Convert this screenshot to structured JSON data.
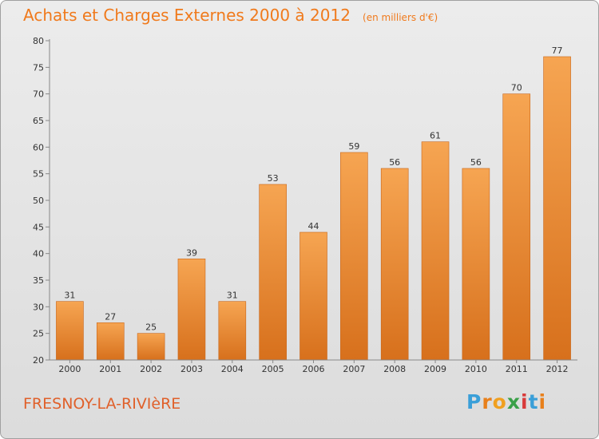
{
  "title": "Achats et Charges Externes 2000 à 2012",
  "subtitle": "(en milliers d'€)",
  "town": "FRESNOY-LA-RIVIèRE",
  "brand": {
    "letters": [
      "P",
      "r",
      "o",
      "x",
      "i",
      "t",
      "i"
    ],
    "colors": [
      "#3a9fd8",
      "#e8801c",
      "#f0a020",
      "#3aa048",
      "#d83a3a",
      "#3a9fd8",
      "#e8801c"
    ]
  },
  "colors": {
    "bar_top": "#f6a552",
    "bar_bottom": "#d7701c",
    "text": "#333333",
    "accent": "#f07a1c"
  },
  "chart_data": {
    "type": "bar",
    "title": "Achats et Charges Externes 2000 à 2012",
    "subtitle": "(en milliers d'€)",
    "categories": [
      "2000",
      "2001",
      "2002",
      "2003",
      "2004",
      "2005",
      "2006",
      "2007",
      "2008",
      "2009",
      "2010",
      "2011",
      "2012"
    ],
    "values": [
      31,
      27,
      25,
      39,
      31,
      53,
      44,
      59,
      56,
      61,
      56,
      70,
      77
    ],
    "ylim": [
      20,
      80
    ],
    "yticks": [
      20,
      25,
      30,
      35,
      40,
      45,
      50,
      55,
      60,
      65,
      70,
      75,
      80
    ],
    "grid": false,
    "data_labels": true
  }
}
